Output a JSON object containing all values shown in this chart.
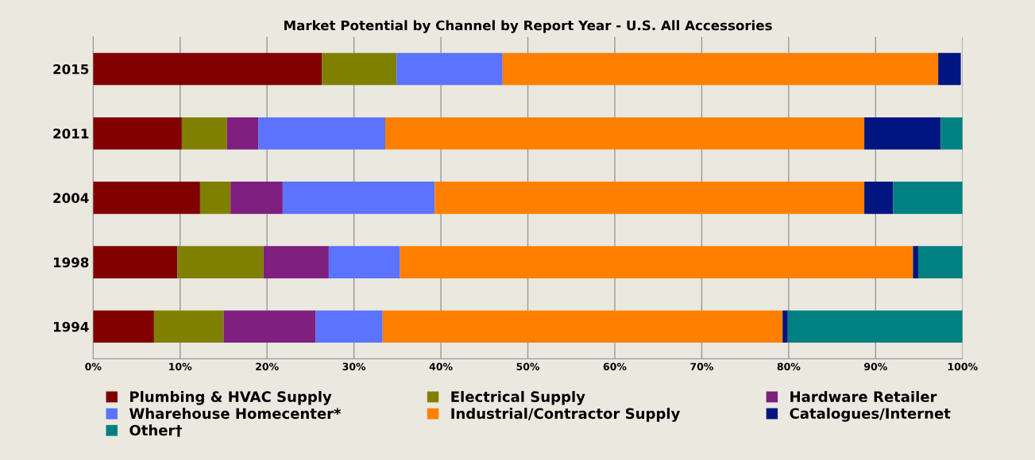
{
  "chart_data": {
    "type": "bar",
    "orientation": "horizontal",
    "stacked": true,
    "title": "Market Potential by Channel by Report Year - U.S. All Accessories",
    "categories": [
      "2015",
      "2011",
      "2004",
      "1998",
      "1994"
    ],
    "series": [
      {
        "name": "Plumbing & HVAC Supply",
        "color": "#800000",
        "values": [
          26.3,
          10.2,
          12.3,
          9.7,
          7.0
        ]
      },
      {
        "name": "Electrical Supply",
        "color": "#808000",
        "values": [
          8.6,
          5.2,
          3.5,
          9.9,
          8.0
        ]
      },
      {
        "name": "Hardware Retailer",
        "color": "#7f1f7f",
        "values": [
          0,
          3.6,
          6.0,
          7.5,
          10.6
        ]
      },
      {
        "name": "Wharehouse Homecenter*",
        "color": "#5b73ff",
        "values": [
          12.2,
          14.6,
          17.5,
          8.2,
          7.7
        ]
      },
      {
        "name": "Industrial/Contractor Supply",
        "color": "#ff8000",
        "values": [
          50.1,
          55.1,
          49.4,
          59.0,
          46.0
        ]
      },
      {
        "name": "Catalogues/Internet",
        "color": "#001580",
        "values": [
          2.6,
          8.8,
          3.3,
          0.6,
          0.6
        ]
      },
      {
        "name": "Other†",
        "color": "#008080",
        "values": [
          null,
          2.5,
          8.0,
          5.1,
          20.1
        ]
      }
    ],
    "xlim": [
      0,
      100
    ],
    "xticks": [
      {
        "value": 0,
        "label": "0%"
      },
      {
        "value": 10,
        "label": "10%"
      },
      {
        "value": 20,
        "label": "20%"
      },
      {
        "value": 30,
        "label": "30%"
      },
      {
        "value": 40,
        "label": "40%"
      },
      {
        "value": 50,
        "label": "50%"
      },
      {
        "value": 60,
        "label": "60%"
      },
      {
        "value": 70,
        "label": "70%"
      },
      {
        "value": 80,
        "label": "80%"
      },
      {
        "value": 90,
        "label": "90%"
      },
      {
        "value": 100,
        "label": "100%"
      }
    ],
    "grid": "x",
    "legend": "bottom"
  }
}
